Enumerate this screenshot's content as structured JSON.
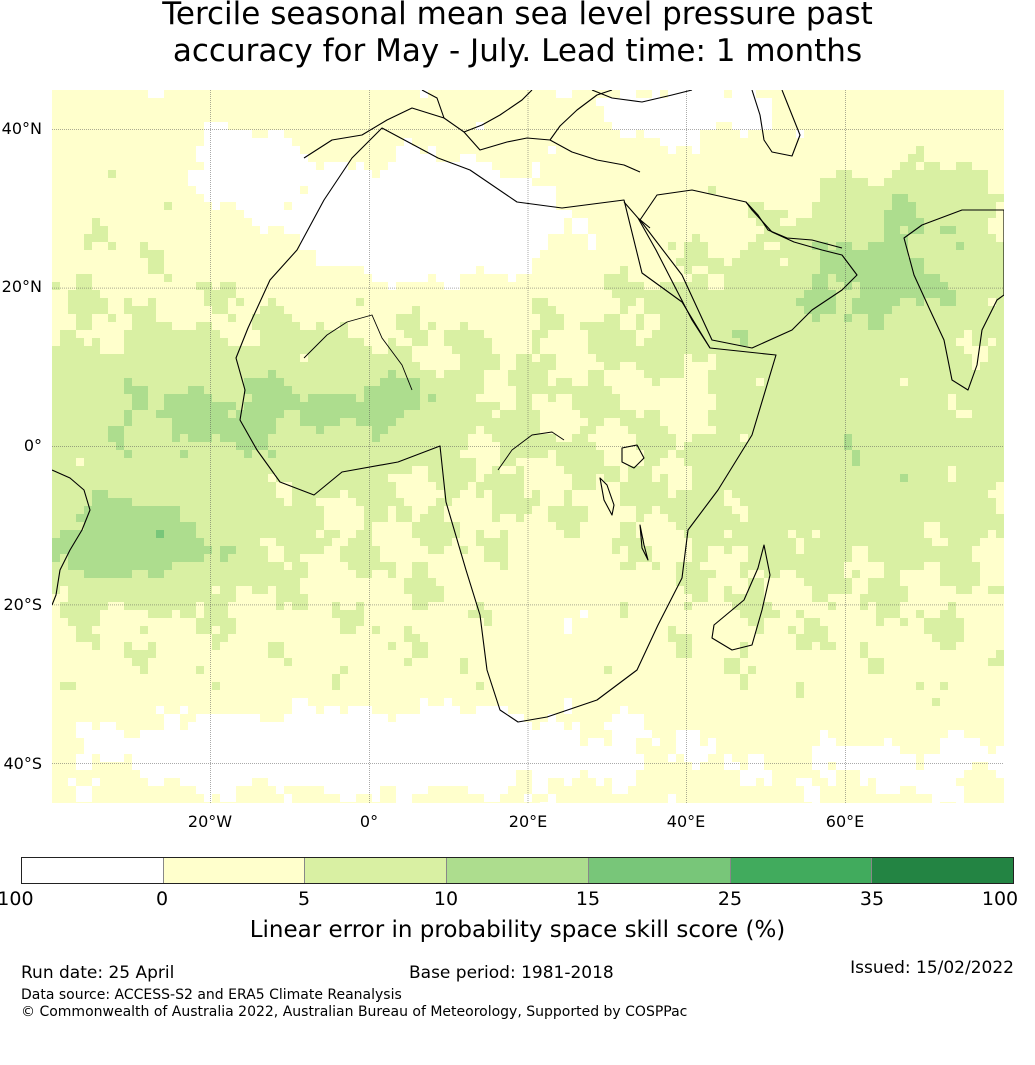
{
  "title_line1": "Tercile seasonal mean sea level pressure past",
  "title_line2": "accuracy for May - July. Lead time: 1 months",
  "map": {
    "latitude_labels": [
      "40°N",
      "20°N",
      "0°",
      "20°S",
      "40°S"
    ],
    "longitude_labels": [
      "20°W",
      "0°",
      "20°E",
      "40°E",
      "60°E"
    ],
    "lon_range": [
      -40,
      80
    ],
    "lat_range": [
      -45,
      45
    ],
    "grid": true
  },
  "legend": {
    "ticks": [
      "-100",
      "0",
      "5",
      "10",
      "15",
      "25",
      "35",
      "100"
    ],
    "colors": [
      "#ffffff",
      "#ffffcc",
      "#d9f0a3",
      "#addd8e",
      "#78c679",
      "#41ab5d",
      "#238443"
    ],
    "label": "Linear error in probability space skill score (%)"
  },
  "footer": {
    "run_date": "Run date: 25 April",
    "base_period": "Base period: 1981-2018",
    "issued": "Issued: 15/02/2022",
    "data_source": "Data source: ACCESS-S2 and ERA5 Climate Reanalysis",
    "copyright": "© Commonwealth of Australia 2022, Australian Bureau of Meteorology, Supported by COSPPac"
  }
}
